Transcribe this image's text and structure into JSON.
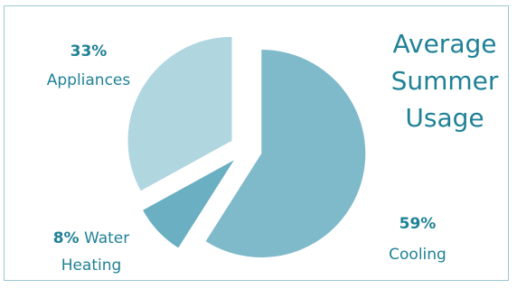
{
  "chart_data": {
    "type": "pie",
    "title": "Average Summer Usage",
    "title_lines": [
      "Average",
      "Summer",
      "Usage"
    ],
    "slices": [
      {
        "label": "Cooling",
        "value": 59,
        "pct_text": "59%",
        "color": "#7fbacb"
      },
      {
        "label": "Water Heating",
        "value": 8,
        "pct_text": "8%",
        "color": "#6aafc2"
      },
      {
        "label": "Appliances",
        "value": 33,
        "pct_text": "33%",
        "color": "#b0d6e0"
      }
    ]
  },
  "colors": {
    "text": "#1f8196",
    "border": "#9cc9d3"
  }
}
